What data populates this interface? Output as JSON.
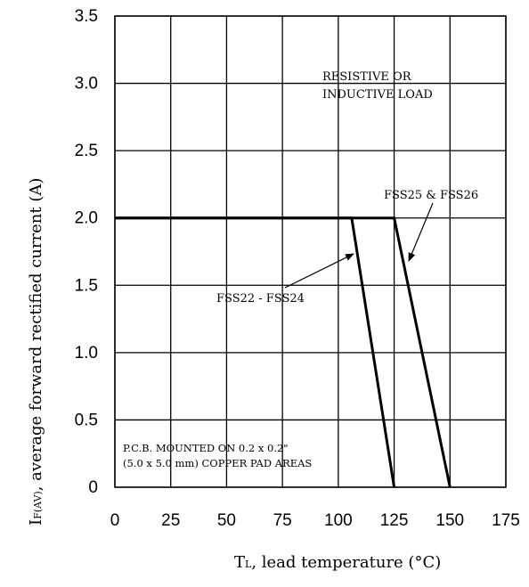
{
  "chart_data": {
    "type": "line",
    "x_ticks": [
      "0",
      "25",
      "50",
      "75",
      "100",
      "125",
      "150",
      "175"
    ],
    "y_ticks": [
      "0",
      "0.5",
      "1.0",
      "1.5",
      "2.0",
      "2.5",
      "3.0",
      "3.5"
    ],
    "xlim": [
      0,
      175
    ],
    "ylim": [
      0,
      3.5
    ],
    "grid": true,
    "xlabel": {
      "main": "T",
      "sub": "L",
      "rest": ",  lead temperature (°C)"
    },
    "ylabel": {
      "main": "I",
      "sub": "F(AV)",
      "rest": ", average forward rectified current (A)"
    },
    "series": [
      {
        "name": "FSS22 - FSS24",
        "points": [
          [
            0,
            2.0
          ],
          [
            106,
            2.0
          ],
          [
            125,
            0
          ]
        ]
      },
      {
        "name": "FSS25 & FSS26",
        "points": [
          [
            0,
            2.0
          ],
          [
            125,
            2.0
          ],
          [
            150,
            0
          ]
        ]
      }
    ],
    "annotations": {
      "load_line1": "RESISTIVE OR",
      "load_line2": "INDUCTIVE LOAD",
      "pcb_line1": "P.C.B. MOUNTED ON 0.2 x 0.2\"",
      "pcb_line2": "(5.0 x 5.0 mm) COPPER PAD AREAS"
    }
  }
}
